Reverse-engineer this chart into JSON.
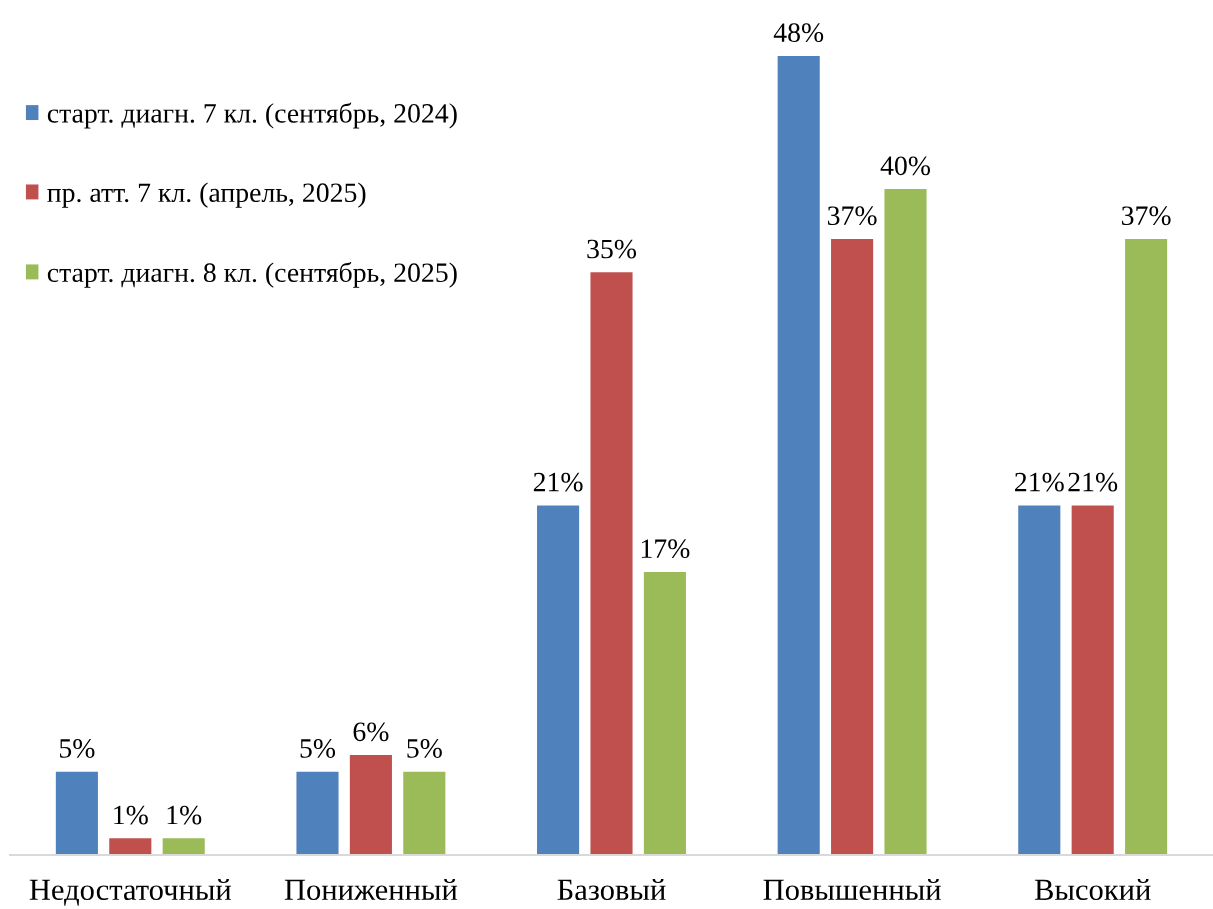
{
  "chart_data": {
    "type": "bar",
    "categories": [
      "Недостаточный",
      "Пониженный",
      "Базовый",
      "Повышенный",
      "Высокий"
    ],
    "series": [
      {
        "name": "старт. диагн. 7 кл. (сентябрь, 2024)",
        "color": "#4f81bd",
        "values": [
          5,
          5,
          21,
          48,
          21
        ],
        "value_labels": [
          "5%",
          "5%",
          "21%",
          "48%",
          "21%"
        ]
      },
      {
        "name": "пр. атт. 7 кл. (апрель, 2025)",
        "color": "#c0504d",
        "values": [
          1,
          6,
          35,
          37,
          21
        ],
        "value_labels": [
          "1%",
          "6%",
          "35%",
          "37%",
          "21%"
        ]
      },
      {
        "name": "старт. диагн. 8 кл. (сентябрь, 2025)",
        "color": "#9bbb59",
        "values": [
          1,
          5,
          17,
          40,
          37
        ],
        "value_labels": [
          "1%",
          "5%",
          "17%",
          "40%",
          "37%"
        ]
      }
    ],
    "legend": "top left",
    "grid": false
  }
}
